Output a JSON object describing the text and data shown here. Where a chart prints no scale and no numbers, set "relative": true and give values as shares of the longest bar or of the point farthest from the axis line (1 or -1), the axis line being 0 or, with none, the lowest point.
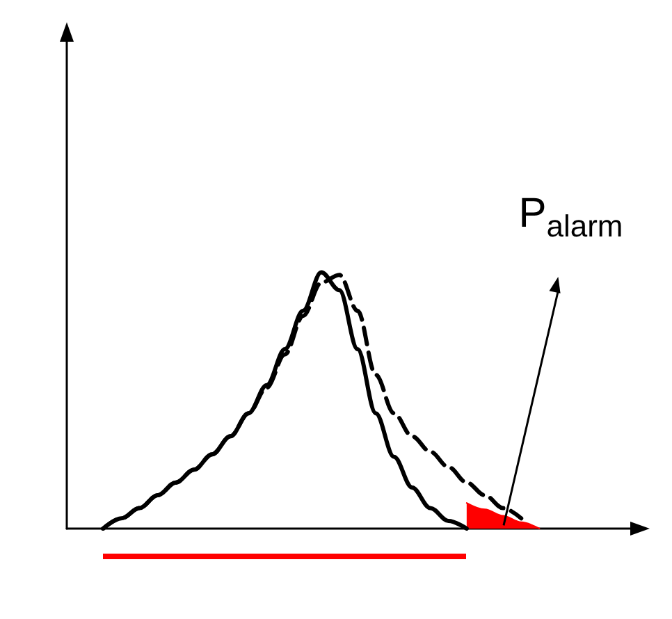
{
  "chart_data": {
    "type": "line",
    "relative": true,
    "marker": "none",
    "categories": [
      null,
      null,
      null,
      null,
      null,
      null,
      null,
      null,
      null,
      null,
      null,
      null,
      null,
      null,
      null,
      null,
      null,
      null,
      null,
      null,
      null,
      null,
      null,
      null,
      null,
      null,
      null,
      null,
      null,
      null,
      null,
      null
    ],
    "series": [
      {
        "color": "#000000",
        "line_style": "solid",
        "values": [
          null,
          null,
          0,
          0.04,
          0.08,
          0.13,
          0.18,
          0.23,
          0.29,
          0.36,
          0.45,
          0.56,
          0.7,
          0.85,
          1.0,
          0.93,
          0.7,
          0.45,
          0.28,
          0.16,
          0.08,
          0.03,
          0,
          null,
          null,
          null,
          null,
          null,
          null,
          null,
          null,
          null
        ]
      },
      {
        "color": "#000000",
        "line_style": "dashed",
        "values": [
          null,
          null,
          0,
          0.04,
          0.08,
          0.13,
          0.18,
          0.23,
          0.29,
          0.36,
          0.45,
          0.55,
          0.68,
          0.83,
          0.96,
          0.99,
          0.85,
          0.6,
          0.45,
          0.36,
          0.3,
          0.24,
          0.18,
          0.13,
          0.08,
          0.04,
          null,
          null,
          null,
          null,
          null,
          null
        ]
      },
      {
        "type": "area",
        "color": "#ff0000",
        "line_style": "solid",
        "values": [
          null,
          null,
          null,
          null,
          null,
          null,
          null,
          null,
          null,
          null,
          null,
          null,
          null,
          null,
          null,
          null,
          null,
          null,
          null,
          null,
          null,
          null,
          0.1,
          0.075,
          0.05,
          0.025,
          0,
          null,
          null,
          null,
          null,
          null
        ]
      }
    ],
    "annotations": [
      "P$_{alarm}$"
    ]
  }
}
